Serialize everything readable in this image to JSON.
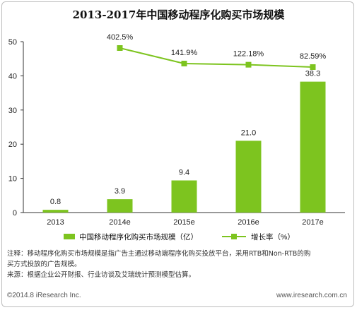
{
  "chart_data": {
    "type": "bar",
    "title": "2013-2017年中国移动程序化购买市场规模",
    "categories": [
      "2013",
      "2014e",
      "2015e",
      "2016e",
      "2017e"
    ],
    "series": [
      {
        "name": "中国移动程序化购买市场规模（亿）",
        "type": "bar",
        "values": [
          0.8,
          3.9,
          9.4,
          21.0,
          38.3
        ],
        "value_labels": [
          "0.8",
          "3.9",
          "9.4",
          "21.0",
          "38.3"
        ],
        "color": "#7dc41f"
      },
      {
        "name": "增长率（%）",
        "type": "line",
        "values": [
          null,
          402.5,
          141.9,
          122.18,
          82.59
        ],
        "value_labels": [
          "",
          "402.5%",
          "141.9%",
          "122.18%",
          "82.59%"
        ],
        "color": "#7dc41f"
      }
    ],
    "yticks": [
      "0",
      "10",
      "20",
      "30",
      "40",
      "50"
    ],
    "ylim": [
      0,
      50
    ],
    "grid": false,
    "legend_position": "bottom"
  },
  "notes": {
    "line1": "注释：移动程序化购买市场规模是指广告主通过移动端程序化购买投放平台，采用RTB和Non-RTB的购",
    "line2": "买方式投放的广告规模。",
    "line3": "来源：根据企业公开财报、行业访谈及艾瑞统计预测模型估算。"
  },
  "footer": {
    "left": "©2014.8 iResearch Inc.",
    "right": "www.iresearch.com.cn"
  }
}
